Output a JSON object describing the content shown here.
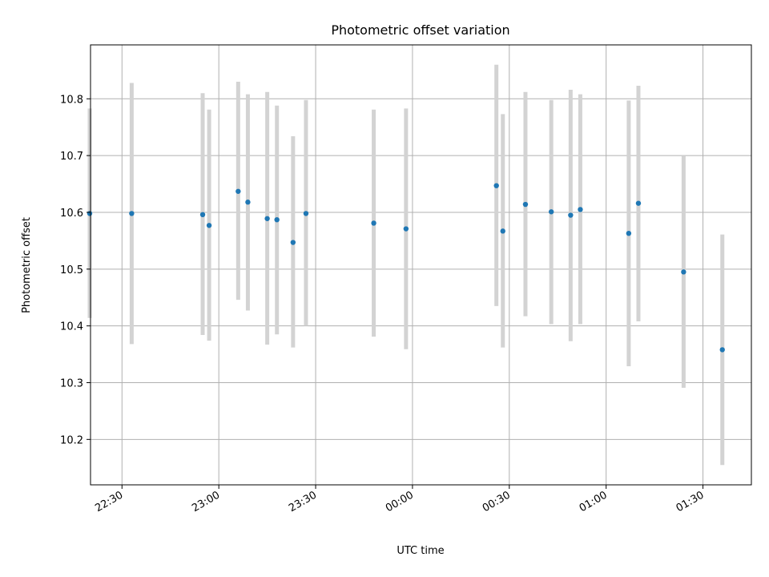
{
  "chart_data": {
    "type": "scatter",
    "title": "Photometric offset variation",
    "xlabel": "UTC time",
    "ylabel": "Photometric offset",
    "xlim": [
      "22:20:15",
      "01:45:00"
    ],
    "ylim": [
      10.12,
      10.895
    ],
    "grid": true,
    "x_ticks": [
      "22:30",
      "23:00",
      "23:30",
      "00:00",
      "00:30",
      "01:00",
      "01:30"
    ],
    "y_ticks": [
      "10.2",
      "10.3",
      "10.4",
      "10.5",
      "10.6",
      "10.7",
      "10.8"
    ],
    "points": [
      {
        "t": "22:20",
        "y": 10.598,
        "lo": 10.414,
        "hi": 10.783
      },
      {
        "t": "22:33",
        "y": 10.598,
        "lo": 10.368,
        "hi": 10.828
      },
      {
        "t": "22:55",
        "y": 10.596,
        "lo": 10.384,
        "hi": 10.81
      },
      {
        "t": "22:57",
        "y": 10.577,
        "lo": 10.374,
        "hi": 10.781
      },
      {
        "t": "23:06",
        "y": 10.637,
        "lo": 10.446,
        "hi": 10.83
      },
      {
        "t": "23:09",
        "y": 10.618,
        "lo": 10.427,
        "hi": 10.808
      },
      {
        "t": "23:15",
        "y": 10.589,
        "lo": 10.367,
        "hi": 10.812
      },
      {
        "t": "23:18",
        "y": 10.587,
        "lo": 10.385,
        "hi": 10.788
      },
      {
        "t": "23:23",
        "y": 10.547,
        "lo": 10.362,
        "hi": 10.734
      },
      {
        "t": "23:27",
        "y": 10.598,
        "lo": 10.4,
        "hi": 10.798
      },
      {
        "t": "23:48",
        "y": 10.581,
        "lo": 10.381,
        "hi": 10.781
      },
      {
        "t": "23:58",
        "y": 10.571,
        "lo": 10.359,
        "hi": 10.783
      },
      {
        "t": "00:26",
        "y": 10.647,
        "lo": 10.435,
        "hi": 10.86
      },
      {
        "t": "00:28",
        "y": 10.567,
        "lo": 10.362,
        "hi": 10.773
      },
      {
        "t": "00:35",
        "y": 10.614,
        "lo": 10.417,
        "hi": 10.812
      },
      {
        "t": "00:43",
        "y": 10.601,
        "lo": 10.403,
        "hi": 10.798
      },
      {
        "t": "00:49",
        "y": 10.595,
        "lo": 10.373,
        "hi": 10.816
      },
      {
        "t": "00:52",
        "y": 10.605,
        "lo": 10.403,
        "hi": 10.808
      },
      {
        "t": "01:07",
        "y": 10.563,
        "lo": 10.329,
        "hi": 10.797
      },
      {
        "t": "01:10",
        "y": 10.616,
        "lo": 10.408,
        "hi": 10.823
      },
      {
        "t": "01:24",
        "y": 10.495,
        "lo": 10.291,
        "hi": 10.7
      },
      {
        "t": "01:36",
        "y": 10.358,
        "lo": 10.155,
        "hi": 10.561
      }
    ]
  }
}
